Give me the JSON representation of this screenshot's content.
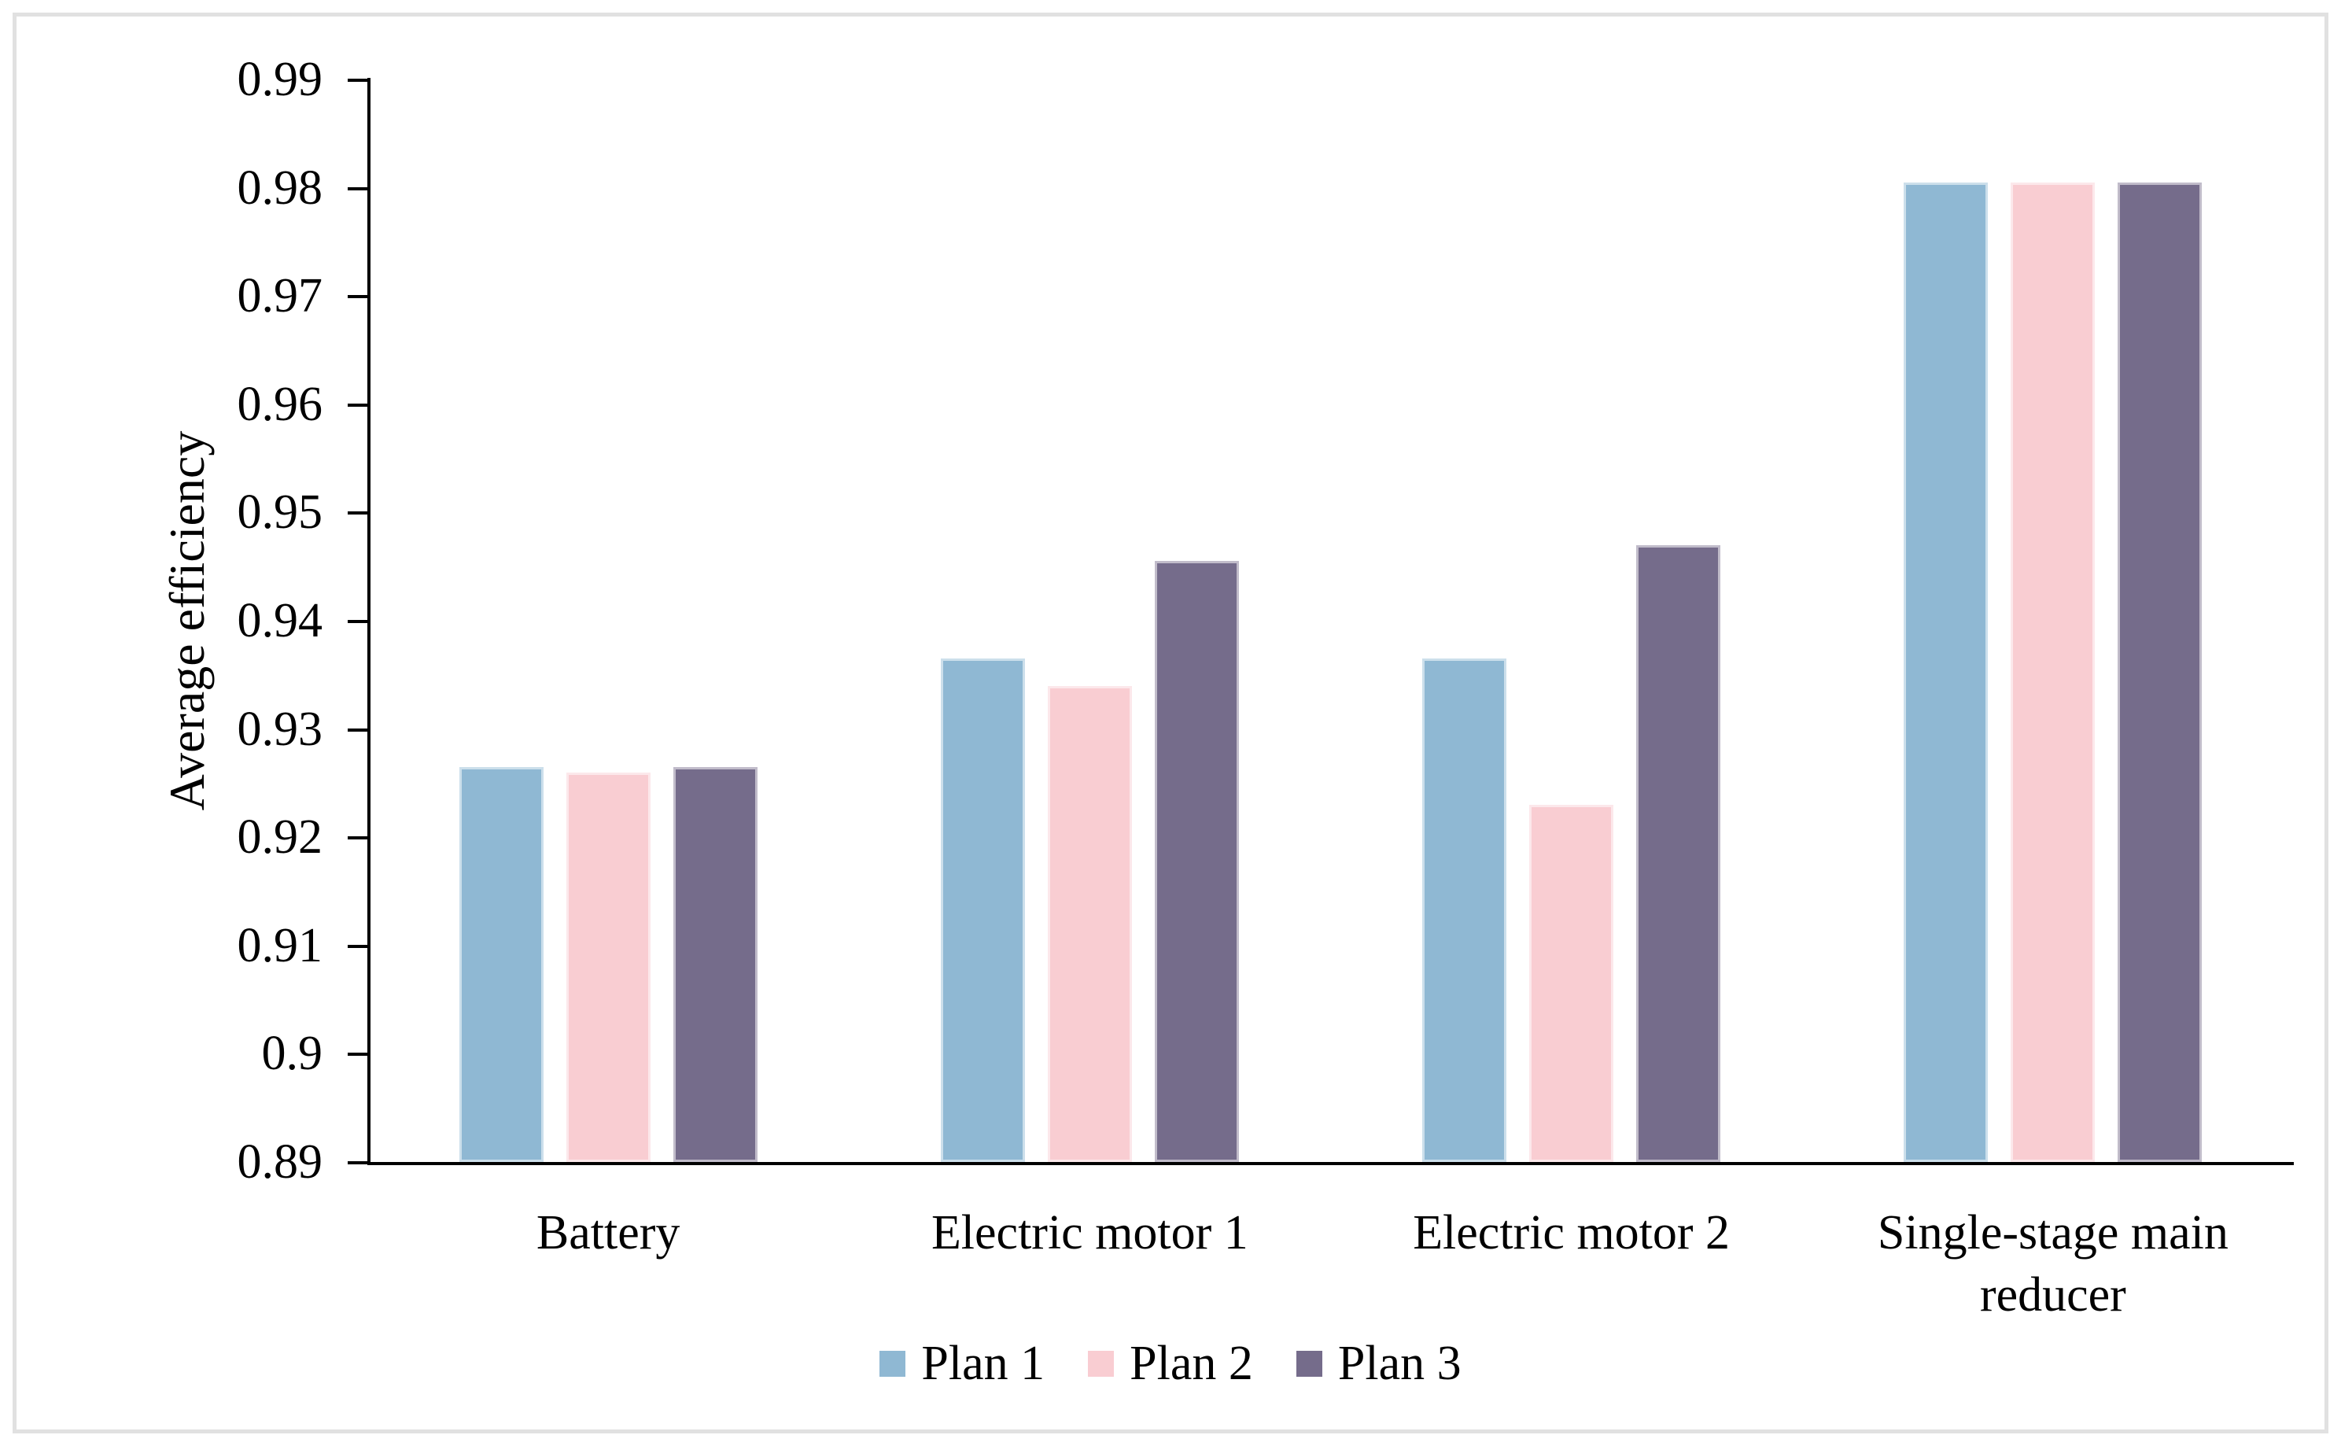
{
  "chart_data": {
    "type": "bar",
    "title": "",
    "ylabel": "Average efficiency",
    "xlabel": "",
    "categories": [
      "Battery",
      "Electric motor 1",
      "Electric motor 2",
      "Single-stage main reducer"
    ],
    "series": [
      {
        "name": "Plan 1",
        "color": "#8fb8d3",
        "values": [
          0.9265,
          0.9365,
          0.9365,
          0.9805
        ]
      },
      {
        "name": "Plan 2",
        "color": "#f9cdd2",
        "values": [
          0.926,
          0.934,
          0.923,
          0.9805
        ]
      },
      {
        "name": "Plan 3",
        "color": "#756c8b",
        "values": [
          0.9265,
          0.9455,
          0.947,
          0.9805
        ]
      }
    ],
    "ylim": [
      0.89,
      0.99
    ],
    "y_ticks": [
      "0.99",
      "0.98",
      "0.97",
      "0.96",
      "0.95",
      "0.94",
      "0.93",
      "0.92",
      "0.91",
      "0.9",
      "0.89"
    ],
    "grid": false,
    "legend_position": "bottom"
  },
  "figure": {
    "background": "#ffffff",
    "border_color": "#e1e1e1",
    "axis_color": "#000000"
  }
}
